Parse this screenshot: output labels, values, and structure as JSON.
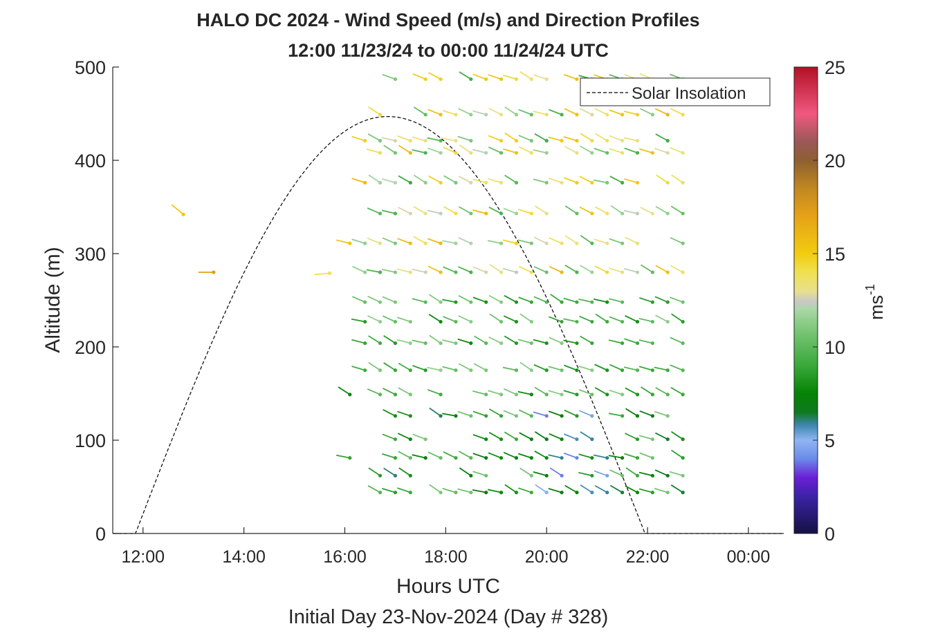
{
  "chart_data": {
    "type": "scatter",
    "title": "HALO DC 2024 - Wind Speed (m/s) and Direction Profiles",
    "subtitle": "12:00 11/23/24 to 00:00 11/24/24  UTC",
    "xlabel": "Hours UTC",
    "ylabel": "Altitude (m)",
    "footer": "Initial Day 23-Nov-2024 (Day # 328)",
    "xlim": [
      11.4,
      24.7
    ],
    "ylim": [
      0,
      500
    ],
    "x_ticks": [
      12,
      14,
      16,
      18,
      20,
      22,
      24
    ],
    "x_tick_labels": [
      "12:00",
      "14:00",
      "16:00",
      "18:00",
      "20:00",
      "22:00",
      "00:00"
    ],
    "y_ticks": [
      0,
      100,
      200,
      300,
      400,
      500
    ],
    "y_tick_labels": [
      "0",
      "100",
      "200",
      "300",
      "400",
      "500"
    ],
    "grid": false,
    "legend": {
      "position": "top-right",
      "entries": [
        {
          "label": "Solar Insolation",
          "style": "dashed",
          "color": "#000000"
        }
      ]
    },
    "colorbar": {
      "label": "ms",
      "label_superscript": "-1",
      "range": [
        0,
        25
      ],
      "ticks": [
        0,
        5,
        10,
        15,
        20,
        25
      ],
      "tick_labels": [
        "0",
        "5",
        "10",
        "15",
        "20",
        "25"
      ],
      "stops": [
        [
          0,
          "#141242"
        ],
        [
          2,
          "#3c22a6"
        ],
        [
          3,
          "#6a1fd6"
        ],
        [
          4,
          "#6a8be8"
        ],
        [
          5,
          "#8fb6f2"
        ],
        [
          5.8,
          "#3f86b0"
        ],
        [
          6.5,
          "#0d7a1d"
        ],
        [
          7.5,
          "#058305"
        ],
        [
          9,
          "#3aa83a"
        ],
        [
          10.5,
          "#6cc06a"
        ],
        [
          12,
          "#a8d8a4"
        ],
        [
          12.4,
          "#c8c8c8"
        ],
        [
          13,
          "#e8e08c"
        ],
        [
          14,
          "#f0e050"
        ],
        [
          15,
          "#f2cc10"
        ],
        [
          17,
          "#e6a218"
        ],
        [
          18.5,
          "#c08820"
        ],
        [
          20,
          "#8e5f30"
        ],
        [
          21,
          "#9a5858"
        ],
        [
          22.5,
          "#f05880"
        ],
        [
          25,
          "#b31024"
        ]
      ]
    },
    "solar_insolation": {
      "start_hour": 11.85,
      "peak_hour": 16.85,
      "end_hour": 21.95,
      "peak_altitude": 447
    },
    "wind_profiles": {
      "note_units": "time in hours UTC, altitude in m, speed in m/s",
      "altitudes": [
        44,
        62,
        81,
        101,
        126,
        149,
        175,
        204,
        227,
        248,
        280,
        311,
        343,
        376,
        408,
        421,
        449,
        487
      ],
      "times": [
        16.1,
        16.4,
        16.7,
        17.0,
        17.3,
        17.6,
        17.9,
        18.2,
        18.5,
        18.8,
        19.1,
        19.4,
        19.7,
        20.0,
        20.3,
        20.6,
        20.9,
        21.2,
        21.5,
        21.8,
        22.1,
        22.4,
        22.7
      ]
    }
  }
}
